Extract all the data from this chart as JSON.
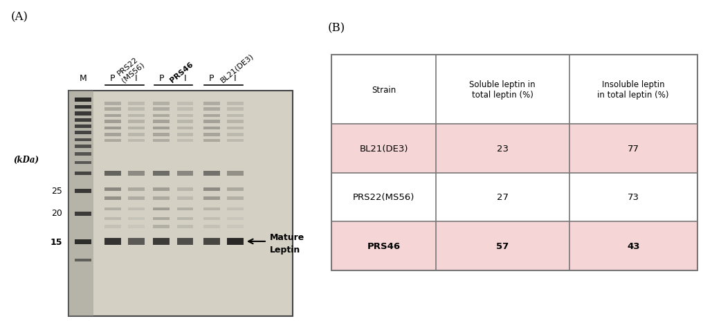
{
  "panel_a_label": "(A)",
  "panel_b_label": "(B)",
  "gel_bg_color": "#d4d0c4",
  "gel_border_color": "#444444",
  "lane_labels_top": [
    "M",
    "P",
    "I",
    "P",
    "I",
    "P",
    "I"
  ],
  "strain_labels": [
    "PRS22\n(MS56)",
    "PRS46",
    "BL21(DE3)"
  ],
  "strain_label_bold": [
    false,
    true,
    false
  ],
  "arrow_label_line1": "Mature",
  "arrow_label_line2": "Leptin",
  "kda_y_positions": {
    "25": 0.415,
    "20": 0.345,
    "15": 0.255
  },
  "table_header": [
    "Strain",
    "Soluble leptin in\ntotal leptin (%)",
    "Insoluble leptin\nin total leptin (%)"
  ],
  "table_rows": [
    [
      "BL21(DE3)",
      "23",
      "77"
    ],
    [
      "PRS22(MS56)",
      "27",
      "73"
    ],
    [
      "PRS46",
      "57",
      "43"
    ]
  ],
  "row_bold": [
    false,
    false,
    true
  ],
  "row_bg_colors": [
    "#f5d5d5",
    "#ffffff",
    "#f5d5d5"
  ],
  "header_bg": "#ffffff",
  "table_border_color": "#777777",
  "figure_bg": "#ffffff"
}
